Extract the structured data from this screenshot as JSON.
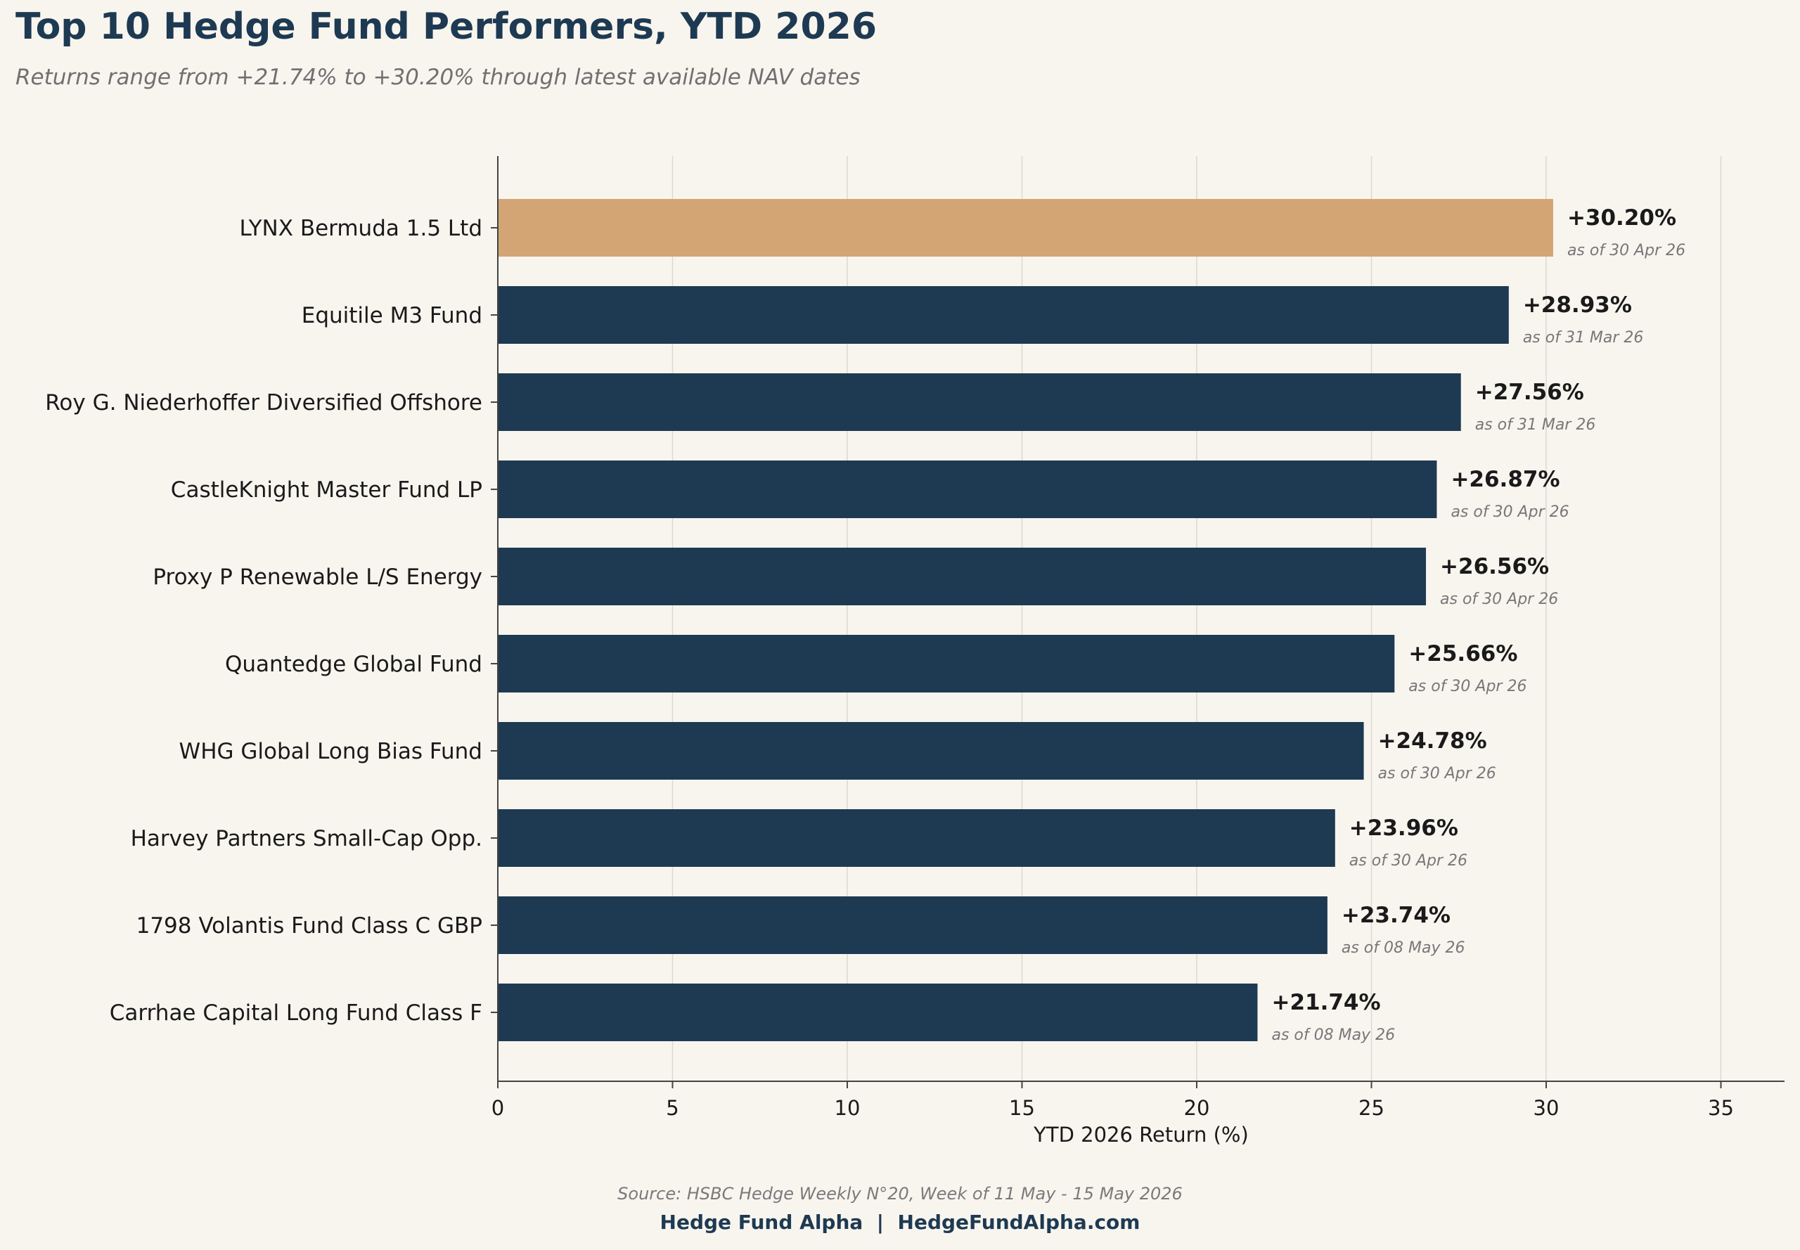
{
  "header": {
    "title": "Top 10 Hedge Fund Performers, YTD 2026",
    "subtitle": "Returns range from +21.74% to +30.20% through latest available NAV dates"
  },
  "footer": {
    "source": "Source: HSBC Hedge Weekly N°20, Week of 11 May - 15 May 2026",
    "brand_name": "Hedge Fund Alpha",
    "separator": "|",
    "brand_site": "HedgeFundAlpha.com"
  },
  "colors": {
    "background": "#f8f5ef",
    "bar_default": "#1e3a52",
    "bar_highlight": "#d4a574",
    "grid": "#ddd8cf",
    "axis": "#444444",
    "label_text": "#1a1a1a",
    "date_text": "#777777"
  },
  "chart_data": {
    "type": "bar",
    "orientation": "horizontal",
    "xlabel": "YTD 2026 Return (%)",
    "ylabel": "",
    "xlim": [
      0,
      37
    ],
    "xticks": [
      0,
      5,
      10,
      15,
      20,
      25,
      30,
      35
    ],
    "grid": "vertical",
    "categories": [
      "LYNX Bermuda 1.5 Ltd",
      "Equitile M3 Fund",
      "Roy G. Niederhoffer Diversified Offshore",
      "CastleKnight Master Fund LP",
      "Proxy P Renewable L/S Energy",
      "Quantedge Global Fund",
      "WHG Global Long Bias Fund",
      "Harvey Partners Small-Cap Opp.",
      "1798 Volantis Fund Class C GBP",
      "Carrhae Capital Long Fund Class F"
    ],
    "values": [
      30.2,
      28.93,
      27.56,
      26.87,
      26.56,
      25.66,
      24.78,
      23.96,
      23.74,
      21.74
    ],
    "value_labels": [
      "+30.20%",
      "+28.93%",
      "+27.56%",
      "+26.87%",
      "+26.56%",
      "+25.66%",
      "+24.78%",
      "+23.96%",
      "+23.74%",
      "+21.74%"
    ],
    "date_labels": [
      "as of 30 Apr 26",
      "as of 31 Mar 26",
      "as of 31 Mar 26",
      "as of 30 Apr 26",
      "as of 30 Apr 26",
      "as of 30 Apr 26",
      "as of 30 Apr 26",
      "as of 30 Apr 26",
      "as of 08 May 26",
      "as of 08 May 26"
    ],
    "highlight_index": 0
  }
}
